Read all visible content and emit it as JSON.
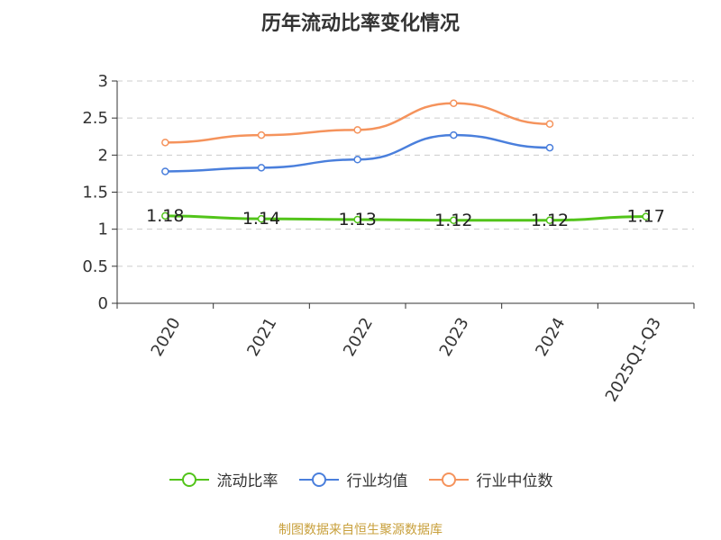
{
  "chart_data": {
    "type": "line",
    "title": "历年流动比率变化情况",
    "categories": [
      "2020",
      "2021",
      "2022",
      "2023",
      "2024",
      "2025Q1-Q3"
    ],
    "series": [
      {
        "name": "流动比率",
        "color": "#52c41a",
        "values": [
          1.18,
          1.14,
          1.13,
          1.12,
          1.12,
          1.17
        ],
        "labels": [
          "1.18",
          "1.14",
          "1.13",
          "1.12",
          "1.12",
          "1.17"
        ]
      },
      {
        "name": "行业均值",
        "color": "#4a7fdc",
        "values": [
          1.78,
          1.83,
          1.94,
          2.27,
          2.1,
          null
        ]
      },
      {
        "name": "行业中位数",
        "color": "#f5935c",
        "values": [
          2.17,
          2.27,
          2.34,
          2.7,
          2.42,
          null
        ]
      }
    ],
    "ylim": [
      0,
      3
    ],
    "yticks": [
      "0",
      "0.5",
      "1",
      "1.5",
      "2",
      "2.5",
      "3"
    ],
    "xlabel": "",
    "ylabel": "",
    "grid": true,
    "legend": "bottom"
  },
  "source": "制图数据来自恒生聚源数据库"
}
